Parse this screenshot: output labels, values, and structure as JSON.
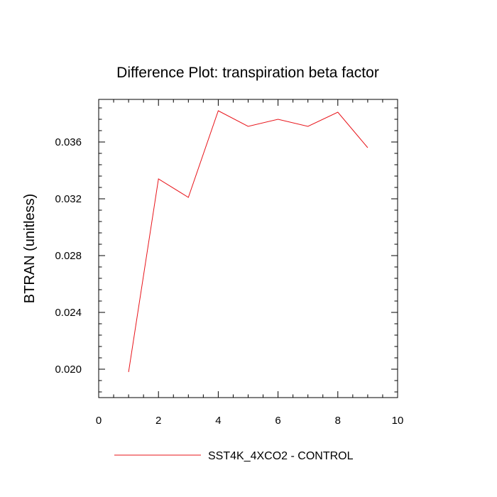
{
  "chart_data": {
    "type": "line",
    "title": "Difference Plot: transpiration beta factor",
    "xlabel": "",
    "ylabel": "BTRAN  (unitless)",
    "xlim": [
      0,
      10
    ],
    "ylim": [
      0.018,
      0.039
    ],
    "x_ticks": [
      0,
      2,
      4,
      6,
      8,
      10
    ],
    "x_tick_labels": [
      "0",
      "2",
      "4",
      "6",
      "8",
      "10"
    ],
    "y_ticks": [
      0.02,
      0.024,
      0.028,
      0.032,
      0.036
    ],
    "y_tick_labels": [
      "0.020",
      "0.024",
      "0.028",
      "0.032",
      "0.036"
    ],
    "grid": false,
    "legend_position": "bottom",
    "series": [
      {
        "name": "SST4K_4XCO2 - CONTROL",
        "color": "#e8141a",
        "x": [
          1,
          2,
          3,
          4,
          5,
          6,
          7,
          8,
          9
        ],
        "y": [
          0.0198,
          0.0334,
          0.0321,
          0.0382,
          0.0371,
          0.0376,
          0.0371,
          0.0381,
          0.0356
        ]
      }
    ]
  }
}
